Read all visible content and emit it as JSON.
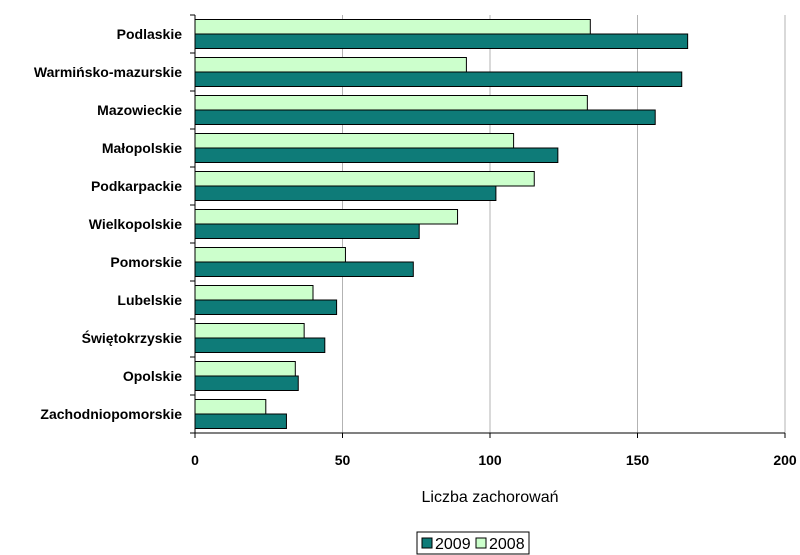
{
  "chart_data": {
    "type": "bar",
    "orientation": "horizontal",
    "categories": [
      "Podlaskie",
      "Warmińsko-mazurskie",
      "Mazowieckie",
      "Małopolskie",
      "Podkarpackie",
      "Wielkopolskie",
      "Pomorskie",
      "Lubelskie",
      "Świętokrzyskie",
      "Opolskie",
      "Zachodniopomorskie"
    ],
    "series": [
      {
        "name": "2009",
        "color": "#0e7b78",
        "values": [
          167,
          165,
          156,
          123,
          102,
          76,
          74,
          48,
          44,
          35,
          31
        ]
      },
      {
        "name": "2008",
        "color": "#ccffcc",
        "values": [
          134,
          92,
          133,
          108,
          115,
          89,
          51,
          40,
          37,
          34,
          24
        ]
      }
    ],
    "xlabel": "Liczba zachorowań",
    "xlim": [
      0,
      200
    ],
    "xticks": [
      0,
      50,
      100,
      150,
      200
    ],
    "grid": true,
    "legend": "bottom-center",
    "legend_order": [
      "2009",
      "2008"
    ]
  }
}
